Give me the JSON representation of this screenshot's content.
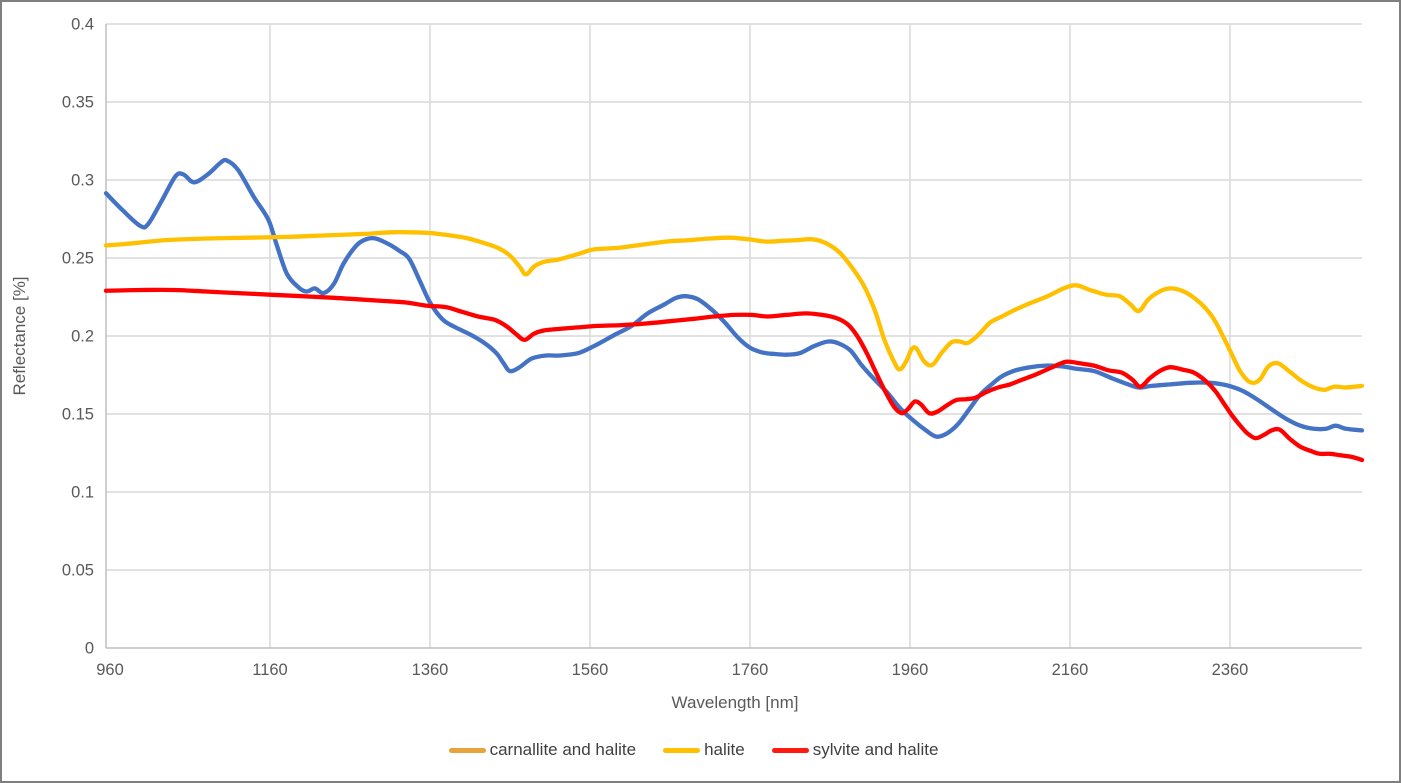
{
  "axes": {
    "x_title": "Wavelength [nm]",
    "y_title": "Reflectance [%]"
  },
  "chart_data": {
    "type": "line",
    "title": "",
    "xlabel": "Wavelength [nm]",
    "ylabel": "Reflectance [%]",
    "xlim": [
      955,
      2525
    ],
    "ylim": [
      0,
      0.4
    ],
    "grid": true,
    "legend_position": "bottom",
    "x_ticks": [
      960,
      1160,
      1360,
      1560,
      1760,
      1960,
      2160,
      2360
    ],
    "x_tick_labels": [
      "960",
      "1160",
      "1360",
      "1560",
      "1760",
      "1960",
      "2160",
      "2360"
    ],
    "y_ticks": [
      0,
      0.05,
      0.1,
      0.15,
      0.2,
      0.25,
      0.3,
      0.35,
      0.4
    ],
    "y_tick_labels": [
      "0",
      "0.05",
      "0.1",
      "0.15",
      "0.2",
      "0.25",
      "0.3",
      "0.35",
      "0.4"
    ],
    "style": {
      "gridline_color": "#d9d9d9",
      "axis_line_color": "#bfbfbf",
      "tick_label_color": "#595959",
      "line_width": 4.3
    },
    "series": [
      {
        "name": "carnallite and halite",
        "line_color": "#4472c4",
        "legend_color": "#e8a33b",
        "points": [
          [
            955,
            0.2915
          ],
          [
            975,
            0.281
          ],
          [
            998,
            0.2705
          ],
          [
            1008,
            0.272
          ],
          [
            1025,
            0.287
          ],
          [
            1042,
            0.3025
          ],
          [
            1052,
            0.3035
          ],
          [
            1065,
            0.2985
          ],
          [
            1082,
            0.3035
          ],
          [
            1098,
            0.311
          ],
          [
            1106,
            0.3125
          ],
          [
            1120,
            0.3065
          ],
          [
            1140,
            0.289
          ],
          [
            1158,
            0.2745
          ],
          [
            1168,
            0.259
          ],
          [
            1181,
            0.24
          ],
          [
            1196,
            0.231
          ],
          [
            1206,
            0.2285
          ],
          [
            1216,
            0.2305
          ],
          [
            1227,
            0.2275
          ],
          [
            1240,
            0.2335
          ],
          [
            1252,
            0.2465
          ],
          [
            1268,
            0.258
          ],
          [
            1280,
            0.262
          ],
          [
            1292,
            0.2625
          ],
          [
            1308,
            0.259
          ],
          [
            1322,
            0.2545
          ],
          [
            1334,
            0.2495
          ],
          [
            1348,
            0.2345
          ],
          [
            1360,
            0.2215
          ],
          [
            1376,
            0.2105
          ],
          [
            1392,
            0.2055
          ],
          [
            1410,
            0.201
          ],
          [
            1428,
            0.1955
          ],
          [
            1443,
            0.189
          ],
          [
            1452,
            0.1825
          ],
          [
            1460,
            0.1775
          ],
          [
            1472,
            0.18
          ],
          [
            1487,
            0.1855
          ],
          [
            1505,
            0.1875
          ],
          [
            1522,
            0.1875
          ],
          [
            1545,
            0.189
          ],
          [
            1565,
            0.1935
          ],
          [
            1590,
            0.2005
          ],
          [
            1612,
            0.2065
          ],
          [
            1632,
            0.2145
          ],
          [
            1652,
            0.22
          ],
          [
            1668,
            0.2245
          ],
          [
            1680,
            0.2255
          ],
          [
            1695,
            0.2235
          ],
          [
            1712,
            0.217
          ],
          [
            1728,
            0.209
          ],
          [
            1745,
            0.199
          ],
          [
            1760,
            0.1925
          ],
          [
            1775,
            0.1895
          ],
          [
            1790,
            0.1885
          ],
          [
            1805,
            0.188
          ],
          [
            1822,
            0.189
          ],
          [
            1840,
            0.1935
          ],
          [
            1858,
            0.1965
          ],
          [
            1872,
            0.195
          ],
          [
            1886,
            0.1905
          ],
          [
            1900,
            0.181
          ],
          [
            1915,
            0.1725
          ],
          [
            1932,
            0.1635
          ],
          [
            1948,
            0.1535
          ],
          [
            1965,
            0.1455
          ],
          [
            1980,
            0.1395
          ],
          [
            1993,
            0.1355
          ],
          [
            2006,
            0.1375
          ],
          [
            2020,
            0.1435
          ],
          [
            2034,
            0.153
          ],
          [
            2048,
            0.1625
          ],
          [
            2062,
            0.169
          ],
          [
            2076,
            0.1745
          ],
          [
            2092,
            0.178
          ],
          [
            2110,
            0.18
          ],
          [
            2130,
            0.181
          ],
          [
            2150,
            0.1805
          ],
          [
            2168,
            0.179
          ],
          [
            2190,
            0.1775
          ],
          [
            2212,
            0.173
          ],
          [
            2230,
            0.1695
          ],
          [
            2246,
            0.167
          ],
          [
            2262,
            0.168
          ],
          [
            2285,
            0.169
          ],
          [
            2310,
            0.17
          ],
          [
            2335,
            0.17
          ],
          [
            2355,
            0.1685
          ],
          [
            2375,
            0.165
          ],
          [
            2395,
            0.159
          ],
          [
            2412,
            0.153
          ],
          [
            2430,
            0.147
          ],
          [
            2448,
            0.1425
          ],
          [
            2465,
            0.1405
          ],
          [
            2480,
            0.1405
          ],
          [
            2492,
            0.1425
          ],
          [
            2505,
            0.1405
          ],
          [
            2525,
            0.1395
          ]
        ]
      },
      {
        "name": "halite",
        "line_color": "#ffc000",
        "legend_color": "#ffc000",
        "points": [
          [
            955,
            0.258
          ],
          [
            990,
            0.2595
          ],
          [
            1030,
            0.2615
          ],
          [
            1080,
            0.2625
          ],
          [
            1130,
            0.263
          ],
          [
            1180,
            0.2635
          ],
          [
            1230,
            0.2645
          ],
          [
            1280,
            0.2655
          ],
          [
            1310,
            0.2665
          ],
          [
            1335,
            0.2665
          ],
          [
            1360,
            0.266
          ],
          [
            1385,
            0.2645
          ],
          [
            1408,
            0.2625
          ],
          [
            1428,
            0.2595
          ],
          [
            1445,
            0.2565
          ],
          [
            1460,
            0.2515
          ],
          [
            1472,
            0.2445
          ],
          [
            1480,
            0.2395
          ],
          [
            1490,
            0.2445
          ],
          [
            1502,
            0.2475
          ],
          [
            1520,
            0.249
          ],
          [
            1545,
            0.2525
          ],
          [
            1565,
            0.2555
          ],
          [
            1595,
            0.2565
          ],
          [
            1625,
            0.2585
          ],
          [
            1655,
            0.2605
          ],
          [
            1685,
            0.2615
          ],
          [
            1710,
            0.2625
          ],
          [
            1735,
            0.263
          ],
          [
            1758,
            0.262
          ],
          [
            1780,
            0.2605
          ],
          [
            1800,
            0.261
          ],
          [
            1820,
            0.2615
          ],
          [
            1838,
            0.262
          ],
          [
            1855,
            0.2595
          ],
          [
            1872,
            0.2535
          ],
          [
            1888,
            0.2435
          ],
          [
            1902,
            0.2325
          ],
          [
            1916,
            0.2165
          ],
          [
            1928,
            0.1975
          ],
          [
            1940,
            0.1835
          ],
          [
            1947,
            0.1785
          ],
          [
            1955,
            0.1835
          ],
          [
            1962,
            0.1915
          ],
          [
            1968,
            0.192
          ],
          [
            1978,
            0.1835
          ],
          [
            1988,
            0.1815
          ],
          [
            2000,
            0.1895
          ],
          [
            2012,
            0.196
          ],
          [
            2022,
            0.1965
          ],
          [
            2032,
            0.1955
          ],
          [
            2045,
            0.2005
          ],
          [
            2060,
            0.2085
          ],
          [
            2075,
            0.2125
          ],
          [
            2090,
            0.2165
          ],
          [
            2110,
            0.221
          ],
          [
            2132,
            0.2255
          ],
          [
            2152,
            0.2305
          ],
          [
            2168,
            0.2325
          ],
          [
            2185,
            0.2295
          ],
          [
            2205,
            0.2265
          ],
          [
            2222,
            0.2255
          ],
          [
            2235,
            0.2205
          ],
          [
            2246,
            0.216
          ],
          [
            2258,
            0.2235
          ],
          [
            2272,
            0.2285
          ],
          [
            2285,
            0.2305
          ],
          [
            2300,
            0.229
          ],
          [
            2315,
            0.2245
          ],
          [
            2330,
            0.2175
          ],
          [
            2342,
            0.209
          ],
          [
            2352,
            0.199
          ],
          [
            2362,
            0.1885
          ],
          [
            2372,
            0.178
          ],
          [
            2382,
            0.1715
          ],
          [
            2390,
            0.17
          ],
          [
            2398,
            0.1725
          ],
          [
            2408,
            0.1805
          ],
          [
            2420,
            0.1825
          ],
          [
            2435,
            0.177
          ],
          [
            2450,
            0.171
          ],
          [
            2465,
            0.167
          ],
          [
            2478,
            0.1655
          ],
          [
            2490,
            0.1675
          ],
          [
            2505,
            0.167
          ],
          [
            2525,
            0.168
          ]
        ]
      },
      {
        "name": "sylvite and halite",
        "line_color": "#ff0000",
        "legend_color": "#ff1a10",
        "points": [
          [
            955,
            0.229
          ],
          [
            1000,
            0.2295
          ],
          [
            1040,
            0.2295
          ],
          [
            1080,
            0.2285
          ],
          [
            1120,
            0.2275
          ],
          [
            1160,
            0.2265
          ],
          [
            1200,
            0.2255
          ],
          [
            1240,
            0.2245
          ],
          [
            1270,
            0.2235
          ],
          [
            1300,
            0.2225
          ],
          [
            1330,
            0.2215
          ],
          [
            1355,
            0.2195
          ],
          [
            1380,
            0.2185
          ],
          [
            1400,
            0.2155
          ],
          [
            1420,
            0.2125
          ],
          [
            1440,
            0.2105
          ],
          [
            1455,
            0.2065
          ],
          [
            1467,
            0.2015
          ],
          [
            1478,
            0.1975
          ],
          [
            1490,
            0.2015
          ],
          [
            1502,
            0.2035
          ],
          [
            1520,
            0.2045
          ],
          [
            1545,
            0.2055
          ],
          [
            1570,
            0.2065
          ],
          [
            1600,
            0.207
          ],
          [
            1630,
            0.208
          ],
          [
            1660,
            0.2095
          ],
          [
            1690,
            0.211
          ],
          [
            1715,
            0.2125
          ],
          [
            1740,
            0.2135
          ],
          [
            1762,
            0.2135
          ],
          [
            1782,
            0.2125
          ],
          [
            1805,
            0.2135
          ],
          [
            1830,
            0.2145
          ],
          [
            1850,
            0.2135
          ],
          [
            1868,
            0.2115
          ],
          [
            1882,
            0.2075
          ],
          [
            1894,
            0.2
          ],
          [
            1906,
            0.189
          ],
          [
            1918,
            0.176
          ],
          [
            1930,
            0.1635
          ],
          [
            1941,
            0.154
          ],
          [
            1950,
            0.1505
          ],
          [
            1958,
            0.1535
          ],
          [
            1966,
            0.158
          ],
          [
            1974,
            0.156
          ],
          [
            1984,
            0.1505
          ],
          [
            1994,
            0.1515
          ],
          [
            2006,
            0.1555
          ],
          [
            2018,
            0.159
          ],
          [
            2030,
            0.1595
          ],
          [
            2042,
            0.1605
          ],
          [
            2055,
            0.164
          ],
          [
            2070,
            0.167
          ],
          [
            2085,
            0.169
          ],
          [
            2100,
            0.172
          ],
          [
            2118,
            0.1755
          ],
          [
            2138,
            0.18
          ],
          [
            2155,
            0.1835
          ],
          [
            2172,
            0.1825
          ],
          [
            2190,
            0.181
          ],
          [
            2208,
            0.178
          ],
          [
            2225,
            0.1765
          ],
          [
            2238,
            0.172
          ],
          [
            2248,
            0.1675
          ],
          [
            2260,
            0.173
          ],
          [
            2272,
            0.1775
          ],
          [
            2285,
            0.18
          ],
          [
            2300,
            0.1785
          ],
          [
            2315,
            0.1765
          ],
          [
            2330,
            0.171
          ],
          [
            2342,
            0.1645
          ],
          [
            2352,
            0.157
          ],
          [
            2362,
            0.1495
          ],
          [
            2372,
            0.143
          ],
          [
            2382,
            0.1375
          ],
          [
            2392,
            0.1345
          ],
          [
            2402,
            0.1365
          ],
          [
            2412,
            0.1395
          ],
          [
            2422,
            0.14
          ],
          [
            2435,
            0.134
          ],
          [
            2448,
            0.129
          ],
          [
            2460,
            0.1265
          ],
          [
            2472,
            0.1245
          ],
          [
            2485,
            0.1245
          ],
          [
            2498,
            0.1235
          ],
          [
            2512,
            0.1225
          ],
          [
            2525,
            0.1205
          ]
        ]
      }
    ]
  }
}
